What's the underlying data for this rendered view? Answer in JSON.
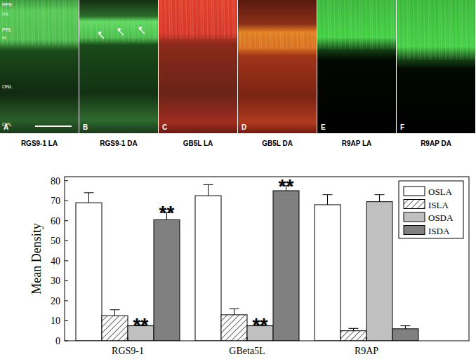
{
  "panels": [
    {
      "letter": "A",
      "label": "RGS9-1 LA"
    },
    {
      "letter": "B",
      "label": "RGS9-1 DA"
    },
    {
      "letter": "C",
      "label": "GB5L LA"
    },
    {
      "letter": "D",
      "label": "GB5L DA"
    },
    {
      "letter": "E",
      "label": "R9AP LA"
    },
    {
      "letter": "F",
      "label": "R9AP DA"
    }
  ],
  "layers": [
    "RPE",
    "OS",
    "PRL",
    "IS",
    "ONL",
    "OPL"
  ],
  "chart_data": {
    "type": "bar",
    "y_label": "Mean Density",
    "categories": [
      "RGS9-1",
      "GBeta5L",
      "R9AP"
    ],
    "series": [
      {
        "name": "OSLA",
        "color": "#ffffff",
        "values": [
          69,
          72.5,
          68
        ],
        "errors": [
          5,
          5.5,
          5
        ]
      },
      {
        "name": "ISLA",
        "color": "#ffffff",
        "values": [
          12.5,
          13,
          5
        ],
        "errors": [
          3,
          3,
          1.2
        ]
      },
      {
        "name": "OSDA",
        "color": "#c0c0c0",
        "values": [
          7.5,
          7.5,
          69.5
        ],
        "errors": [
          0.4,
          0.5,
          3.5
        ]
      },
      {
        "name": "ISDA",
        "color": "#808080",
        "values": [
          60.5,
          75,
          6
        ],
        "errors": [
          3.5,
          2.5,
          1.5
        ]
      }
    ],
    "annotations": [
      {
        "text": "**",
        "series": 2,
        "category": 0
      },
      {
        "text": "**",
        "series": 3,
        "category": 0
      },
      {
        "text": "**",
        "series": 2,
        "category": 1
      },
      {
        "text": "**",
        "series": 3,
        "category": 1
      }
    ],
    "ylim": [
      0,
      82
    ],
    "yticks": [
      0,
      10,
      20,
      30,
      40,
      50,
      60,
      70,
      80
    ],
    "legend": "upper right"
  }
}
